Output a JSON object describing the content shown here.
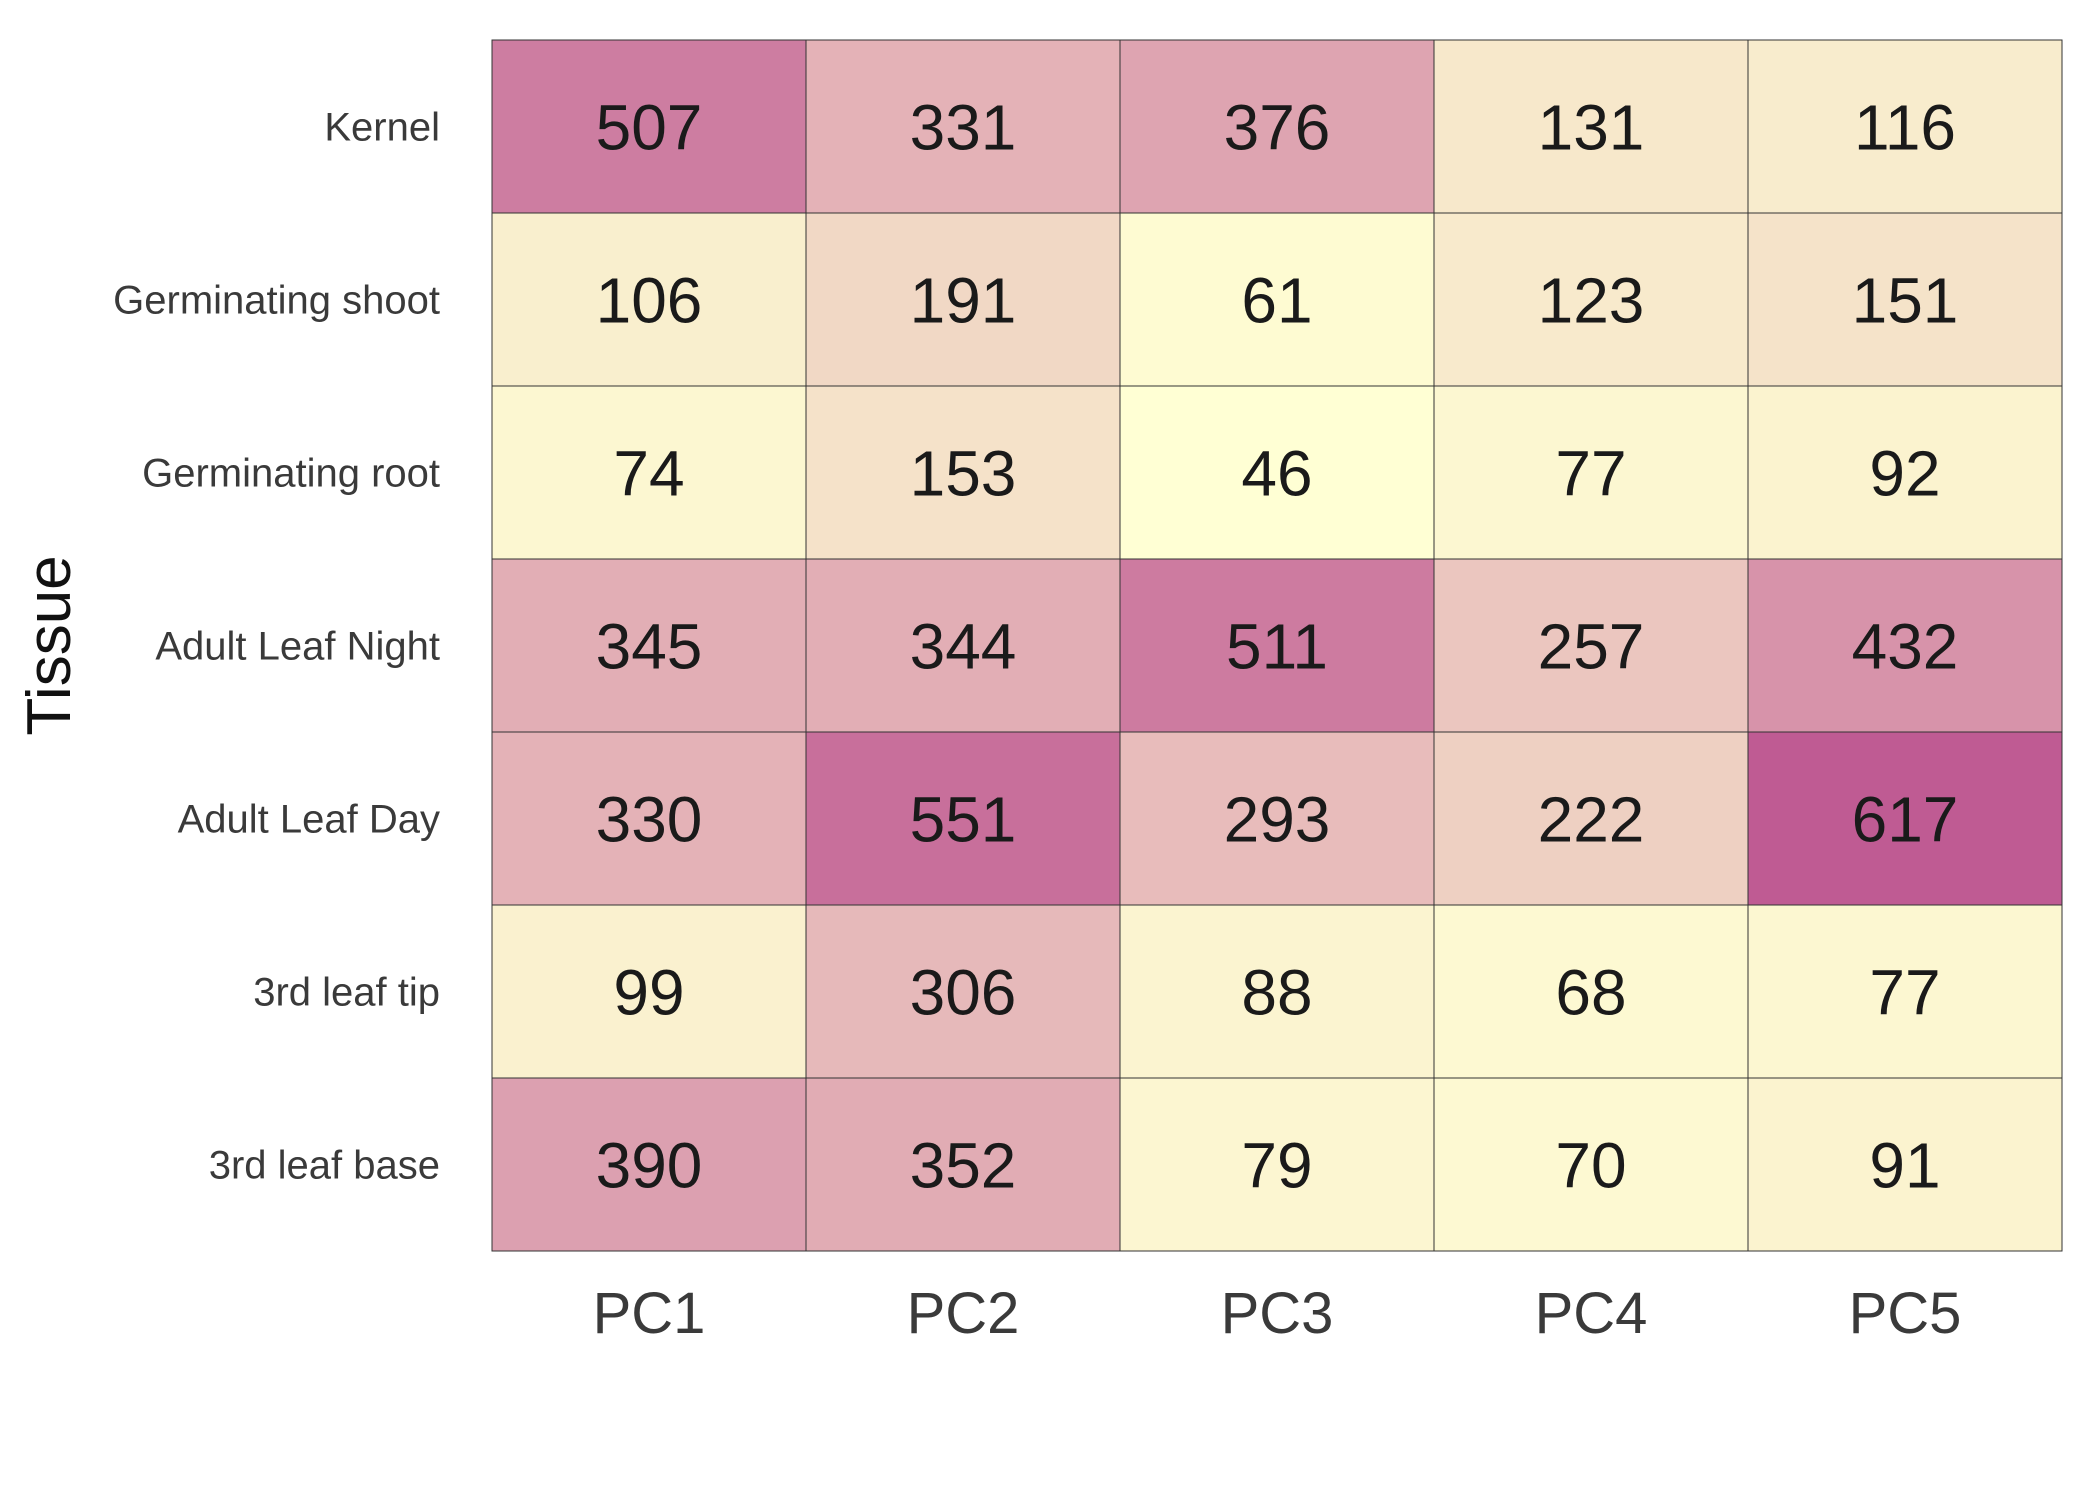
{
  "chart_data": {
    "type": "heatmap",
    "ylabel": "Tissue",
    "xlabel": "",
    "columns": [
      "PC1",
      "PC2",
      "PC3",
      "PC4",
      "PC5"
    ],
    "rows": [
      "Kernel",
      "Germinating shoot",
      "Germinating root",
      "Adult Leaf Night",
      "Adult Leaf Day",
      "3rd leaf tip",
      "3rd leaf base"
    ],
    "values": [
      [
        507,
        331,
        376,
        131,
        116
      ],
      [
        106,
        191,
        61,
        123,
        151
      ],
      [
        74,
        153,
        46,
        77,
        92
      ],
      [
        345,
        344,
        511,
        257,
        432
      ],
      [
        330,
        551,
        293,
        222,
        617
      ],
      [
        99,
        306,
        88,
        68,
        77
      ],
      [
        390,
        352,
        79,
        70,
        91
      ]
    ],
    "color_scale": {
      "low": "#ffffd4",
      "mid": "#e4b2b7",
      "high": "#bf5b93",
      "min_value": 46,
      "max_value": 617
    },
    "grid": true,
    "legend": "none"
  }
}
